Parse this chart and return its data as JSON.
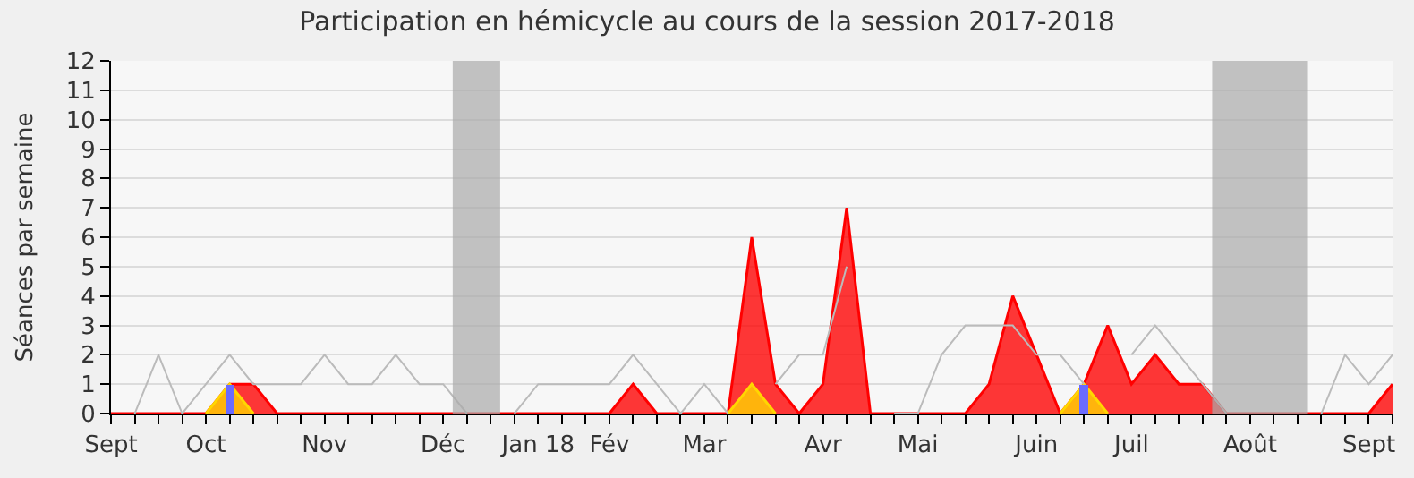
{
  "chart_data": {
    "type": "area",
    "title": "Participation en hémicycle au cours de la session 2017-2018",
    "ylabel": "Séances par semaine",
    "categories": [
      "Sept",
      null,
      null,
      null,
      "Oct",
      null,
      null,
      null,
      null,
      "Nov",
      null,
      null,
      null,
      null,
      "Déc",
      null,
      null,
      null,
      "Jan 18",
      null,
      null,
      "Fév",
      null,
      null,
      null,
      "Mar",
      null,
      null,
      null,
      null,
      "Avr",
      null,
      null,
      null,
      "Mai",
      null,
      null,
      null,
      null,
      "Juin",
      null,
      null,
      null,
      "Juil",
      null,
      null,
      null,
      null,
      "Août",
      null,
      null,
      null,
      null,
      "Sept",
      null
    ],
    "ylim": [
      0,
      12
    ],
    "yticks": [
      0,
      1,
      2,
      3,
      4,
      5,
      6,
      7,
      8,
      9,
      10,
      11,
      12
    ],
    "grid": "y",
    "series": [
      {
        "type": "line",
        "color": "#bbbbbb",
        "values": [
          null,
          0,
          2,
          0,
          1,
          2,
          1,
          1,
          1,
          2,
          1,
          1,
          2,
          1,
          1,
          0,
          null,
          0,
          1,
          1,
          1,
          1,
          2,
          1,
          0,
          1,
          0,
          null,
          1,
          2,
          2,
          5,
          null,
          0,
          0,
          2,
          3,
          3,
          3,
          2,
          2,
          1,
          null,
          2,
          3,
          2,
          1,
          0,
          null,
          null,
          null,
          0,
          2,
          1,
          2
        ]
      },
      {
        "color": "#ff0000",
        "values": [
          0,
          0,
          0,
          0,
          0,
          1,
          1,
          0,
          0,
          0,
          0,
          0,
          0,
          0,
          0,
          0,
          0,
          0,
          0,
          0,
          0,
          0,
          1,
          0,
          0,
          0,
          0,
          6,
          1,
          0,
          1,
          7,
          0,
          0,
          0,
          0,
          0,
          1,
          4,
          2,
          0,
          1,
          3,
          1,
          2,
          1,
          1,
          0,
          0,
          0,
          0,
          0,
          0,
          0,
          1
        ]
      },
      {
        "type": "area",
        "color": "#ffd700",
        "values": [
          null,
          null,
          null,
          null,
          0,
          1,
          0,
          null,
          null,
          null,
          null,
          null,
          null,
          null,
          null,
          null,
          null,
          null,
          null,
          null,
          null,
          null,
          null,
          null,
          null,
          null,
          0,
          1,
          0,
          null,
          null,
          null,
          null,
          null,
          null,
          null,
          null,
          null,
          null,
          null,
          0,
          1,
          0,
          null,
          null,
          null,
          null,
          null,
          null,
          null,
          null,
          null,
          null,
          null,
          null
        ]
      },
      {
        "type": "bar",
        "color": "#6b6bff",
        "values": [
          null,
          null,
          null,
          null,
          null,
          1,
          null,
          null,
          null,
          null,
          null,
          null,
          null,
          null,
          null,
          null,
          null,
          null,
          null,
          null,
          null,
          null,
          null,
          null,
          null,
          null,
          null,
          null,
          null,
          null,
          null,
          null,
          null,
          null,
          null,
          null,
          null,
          null,
          null,
          null,
          null,
          1,
          null,
          null,
          null,
          null,
          null,
          null,
          null,
          null,
          null,
          null,
          null,
          null,
          null
        ]
      }
    ]
  }
}
